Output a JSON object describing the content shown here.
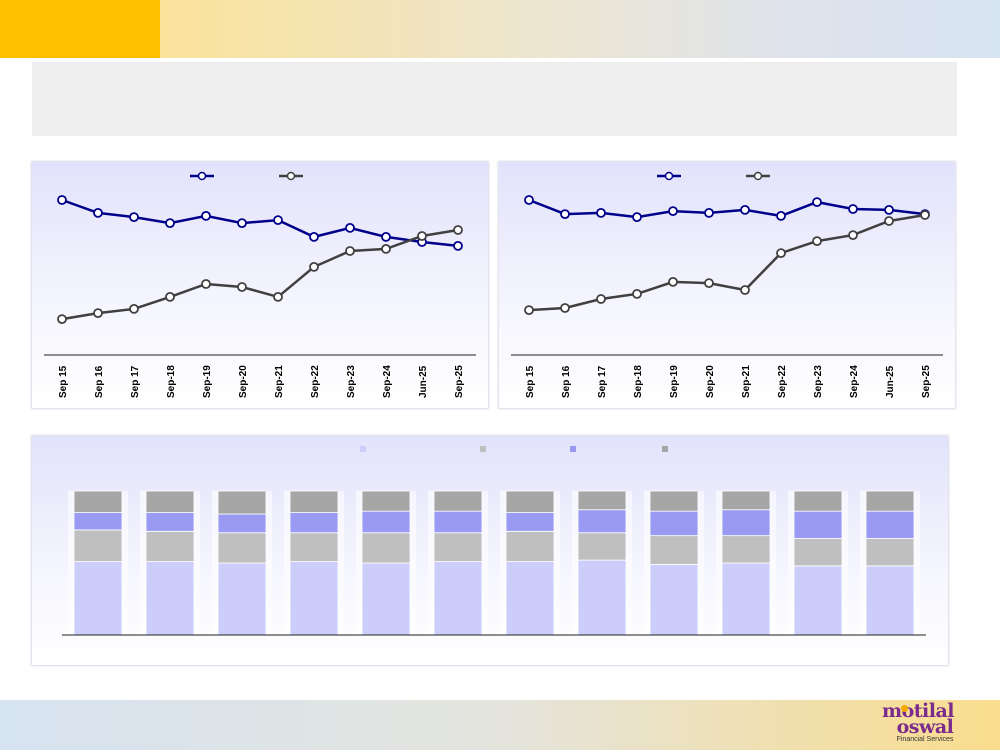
{
  "brand": {
    "name_line1": "motilal",
    "name_line2": "oswal",
    "tagline": "Financial Services"
  },
  "colors": {
    "accent": "#ffc000",
    "series_primary": "#00008b",
    "series_secondary": "#404040",
    "stack_1": "#cccdfb",
    "stack_2": "#bfbfbf",
    "stack_3": "#9a9af2",
    "stack_4": "#a6a6a6"
  },
  "chart_data": [
    {
      "type": "line",
      "categories": [
        "Sep 15",
        "Sep 16",
        "Sep 17",
        "Sep-18",
        "Sep-19",
        "Sep-20",
        "Sep-21",
        "Sep-22",
        "Sep-23",
        "Sep-24",
        "Jun-25",
        "Sep-25"
      ],
      "series": [
        {
          "values": [
            80.0,
            75.7,
            74.3,
            72.3,
            74.7,
            72.3,
            73.3,
            67.7,
            70.7,
            67.7,
            66.0,
            64.7
          ]
        },
        {
          "values": [
            40.3,
            42.3,
            43.7,
            47.7,
            52.0,
            51.0,
            47.7,
            57.7,
            63.0,
            63.7,
            68.0,
            70.0
          ]
        }
      ],
      "ylim": [
        20,
        90
      ],
      "legend_position": "top-center"
    },
    {
      "type": "line",
      "categories": [
        "Sep 15",
        "Sep 16",
        "Sep 17",
        "Sep-18",
        "Sep-19",
        "Sep-20",
        "Sep-21",
        "Sep-22",
        "Sep-23",
        "Sep-24",
        "Jun-25",
        "Sep-25"
      ],
      "series": [
        {
          "values": [
            80.0,
            75.3,
            75.7,
            74.3,
            76.3,
            75.7,
            76.7,
            74.7,
            79.3,
            77.0,
            76.7,
            75.3
          ]
        },
        {
          "values": [
            43.3,
            44.0,
            47.0,
            48.7,
            52.7,
            52.3,
            50.0,
            62.3,
            66.3,
            68.3,
            73.0,
            75.0
          ]
        }
      ],
      "ylim": [
        20,
        90
      ],
      "legend_position": "top-center"
    },
    {
      "type": "bar",
      "stacked": true,
      "orientation": "vertical",
      "categories": [
        "",
        "",
        "",
        "",
        "",
        "",
        "",
        "",
        "",
        "",
        "",
        ""
      ],
      "series": [
        {
          "values": [
            51,
            51,
            50,
            51,
            50,
            51,
            51,
            52,
            49,
            50,
            48,
            48
          ]
        },
        {
          "values": [
            22,
            21,
            21,
            20,
            21,
            20,
            21,
            19,
            20,
            19,
            19,
            19
          ]
        },
        {
          "values": [
            12,
            13,
            13,
            14,
            15,
            15,
            13,
            16,
            17,
            18,
            19,
            19
          ]
        },
        {
          "values": [
            15,
            15,
            16,
            15,
            14,
            14,
            15,
            13,
            14,
            13,
            14,
            14
          ]
        }
      ],
      "ylim": [
        0,
        100
      ],
      "legend_position": "top-center"
    }
  ]
}
